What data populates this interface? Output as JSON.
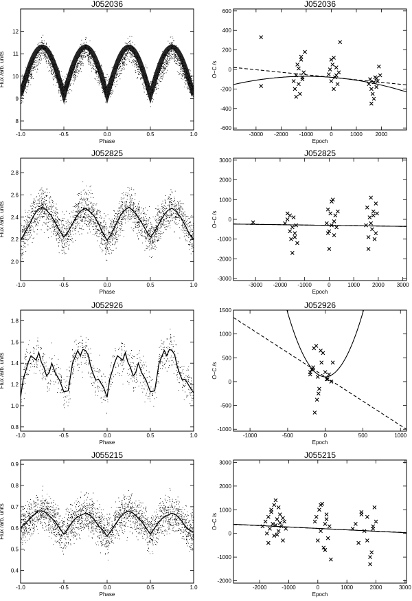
{
  "chart_data": [
    {
      "type": "scatter",
      "title": "J052036",
      "xlabel": "Phase",
      "ylabel": "Flux /arb. units",
      "xlim": [
        -1.0,
        1.0
      ],
      "ylim": [
        7.6,
        13.0
      ],
      "xticks": [
        -1.0,
        -0.5,
        0.0,
        0.5,
        1.0
      ],
      "xtick_labels": [
        "-1.0",
        "-0.5",
        "0.0",
        "0.5",
        "1.0"
      ],
      "yticks": [
        8,
        9,
        10,
        11,
        12
      ],
      "ytick_labels": [
        "8",
        "9",
        "10",
        "11",
        "12"
      ],
      "curve": {
        "x": [
          -1.0,
          -0.75,
          -0.5,
          -0.25,
          0.0,
          0.25,
          0.5,
          0.75,
          1.0
        ],
        "y": [
          9.3,
          11.3,
          9.3,
          11.3,
          9.3,
          11.3,
          9.3,
          11.3,
          9.3
        ]
      },
      "scatter_note": "dense scatter of individual flux measurements around the model curve"
    },
    {
      "type": "scatter",
      "title": "J052036",
      "xlabel": "Epoch",
      "ylabel": "O−C /s",
      "xlim": [
        -3900,
        3000
      ],
      "ylim": [
        -620,
        620
      ],
      "xticks": [
        -3000,
        -2000,
        -1000,
        0,
        1000,
        2000
      ],
      "xtick_labels": [
        "-3000",
        "-2000",
        "-1000",
        "0",
        "1000",
        "2000"
      ],
      "yticks": [
        -600,
        -400,
        -200,
        0,
        200,
        400,
        600
      ],
      "ytick_labels": [
        "-600",
        "-400",
        "-200",
        "0",
        "200",
        "400",
        "600"
      ],
      "series": [
        {
          "style": "cross",
          "x": [
            -2800,
            -2800,
            -1500,
            -1450,
            -1400,
            -1350,
            -1300,
            -1250,
            -1200,
            -1150,
            -1100,
            -1050,
            -1400,
            -1300,
            -1200,
            -1150,
            -100,
            -50,
            0,
            50,
            100,
            150,
            200,
            250,
            300,
            350,
            0,
            100,
            200,
            1500,
            1550,
            1600,
            1650,
            1700,
            1750,
            1800,
            1850,
            1900,
            1950,
            1600,
            1700,
            1800
          ],
          "y": [
            330,
            -170,
            -120,
            -200,
            -60,
            50,
            -150,
            -250,
            100,
            -80,
            -30,
            180,
            -280,
            10,
            130,
            -100,
            -50,
            0,
            -120,
            50,
            120,
            -80,
            20,
            -150,
            -30,
            280,
            100,
            -200,
            -60,
            -150,
            -100,
            -200,
            -250,
            -130,
            -80,
            -180,
            -120,
            30,
            -60,
            -350,
            -300,
            -90
          ]
        }
      ],
      "lines": [
        {
          "style": "solid",
          "quadratic": [
            -80.4,
            -0.02,
            -1e-05
          ]
        },
        {
          "style": "dashed",
          "linear": [
            -80.4,
            -0.0259
          ]
        }
      ]
    },
    {
      "type": "scatter",
      "title": "J052825",
      "xlabel": "Phase",
      "ylabel": "Flux /arb. units",
      "xlim": [
        -1.0,
        1.0
      ],
      "ylim": [
        1.83,
        2.93
      ],
      "xticks": [
        -1.0,
        -0.5,
        0.0,
        0.5,
        1.0
      ],
      "xtick_labels": [
        "-1.0",
        "-0.5",
        "0.0",
        "0.5",
        "1.0"
      ],
      "yticks": [
        2.0,
        2.2,
        2.4,
        2.6,
        2.8
      ],
      "ytick_labels": [
        "2.0",
        "2.2",
        "2.4",
        "2.6",
        "2.8"
      ],
      "curve": {
        "x": [
          -1.0,
          -0.95,
          -0.9,
          -0.85,
          -0.8,
          -0.75,
          -0.7,
          -0.65,
          -0.6,
          -0.55,
          -0.5,
          -0.45,
          -0.4,
          -0.35,
          -0.3,
          -0.25,
          -0.2,
          -0.15,
          -0.1,
          -0.05,
          0.0,
          0.05,
          0.1,
          0.15,
          0.2,
          0.25,
          0.3,
          0.35,
          0.4,
          0.45,
          0.5,
          0.55,
          0.6,
          0.65,
          0.7,
          0.75,
          0.8,
          0.85,
          0.9,
          0.95,
          1.0
        ],
        "y": [
          2.19,
          2.26,
          2.33,
          2.41,
          2.47,
          2.49,
          2.46,
          2.42,
          2.35,
          2.28,
          2.22,
          2.27,
          2.34,
          2.41,
          2.46,
          2.48,
          2.45,
          2.41,
          2.34,
          2.26,
          2.19,
          2.25,
          2.33,
          2.41,
          2.46,
          2.49,
          2.46,
          2.41,
          2.35,
          2.28,
          2.22,
          2.27,
          2.34,
          2.41,
          2.46,
          2.48,
          2.45,
          2.4,
          2.33,
          2.25,
          2.2
        ]
      },
      "scatter_note": "dense scatter of individual flux measurements around the model curve"
    },
    {
      "type": "scatter",
      "title": "J052825",
      "xlabel": "Epoch",
      "ylabel": "O−C /s",
      "xlim": [
        -3900,
        3150
      ],
      "ylim": [
        -3100,
        3100
      ],
      "xticks": [
        -3000,
        -2000,
        -1000,
        0,
        1000,
        2000,
        3000
      ],
      "xtick_labels": [
        "-3000",
        "-2000",
        "-1000",
        "0",
        "1000",
        "2000",
        "3000"
      ],
      "yticks": [
        -3000,
        -2000,
        -1000,
        0,
        1000,
        2000,
        3000
      ],
      "ytick_labels": [
        "-3000",
        "-2000",
        "-1000",
        "0",
        "1000",
        "2000",
        "3000"
      ],
      "series": [
        {
          "style": "cross",
          "x": [
            -3100,
            -1800,
            -1700,
            -1600,
            -1550,
            -1500,
            -1450,
            -1400,
            -1350,
            -1300,
            -1600,
            -1500,
            -1400,
            -1700,
            -100,
            -50,
            0,
            50,
            100,
            150,
            200,
            250,
            300,
            350,
            0,
            100,
            200,
            -50,
            1500,
            1550,
            1600,
            1650,
            1700,
            1750,
            1800,
            1850,
            1900,
            1950,
            1600,
            1700,
            1800,
            1900
          ],
          "y": [
            -150,
            -200,
            300,
            -600,
            -1000,
            -400,
            100,
            -700,
            -300,
            -1200,
            200,
            -1700,
            -900,
            0,
            -200,
            500,
            -600,
            300,
            -300,
            1000,
            -800,
            200,
            -400,
            400,
            -1500,
            900,
            -100,
            -700,
            -300,
            600,
            -900,
            100,
            1100,
            -500,
            200,
            -1000,
            800,
            300,
            -1500,
            -200,
            400,
            -700
          ]
        }
      ],
      "lines": [
        {
          "style": "solid",
          "linear": [
            -304,
            -0.0171
          ]
        },
        {
          "style": "dashed",
          "linear": [
            -304,
            -0.0171
          ]
        }
      ]
    },
    {
      "type": "scatter",
      "title": "J052926",
      "xlabel": "Phase",
      "ylabel": "Flux /arb. units",
      "xlim": [
        -1.0,
        1.0
      ],
      "ylim": [
        0.76,
        1.9
      ],
      "xticks": [
        -1.0,
        -0.5,
        0.0,
        0.5,
        1.0
      ],
      "xtick_labels": [
        "-1.0",
        "-0.5",
        "0.0",
        "0.5",
        "1.0"
      ],
      "yticks": [
        0.8,
        1.0,
        1.2,
        1.4,
        1.6,
        1.8
      ],
      "ytick_labels": [
        "0.8",
        "1.0",
        "1.2",
        "1.4",
        "1.6",
        "1.8"
      ],
      "curve": {
        "x": [
          -1.0,
          -0.97,
          -0.94,
          -0.91,
          -0.88,
          -0.85,
          -0.82,
          -0.79,
          -0.76,
          -0.73,
          -0.7,
          -0.67,
          -0.64,
          -0.6,
          -0.55,
          -0.5,
          -0.45,
          -0.4,
          -0.37,
          -0.34,
          -0.31,
          -0.28,
          -0.25,
          -0.22,
          -0.19,
          -0.16,
          -0.13,
          -0.1,
          -0.07,
          -0.04,
          0.0,
          0.03,
          0.06,
          0.09,
          0.12,
          0.15,
          0.18,
          0.21,
          0.24,
          0.27,
          0.3,
          0.33,
          0.36,
          0.4,
          0.45,
          0.5,
          0.55,
          0.6,
          0.63,
          0.66,
          0.69,
          0.72,
          0.75,
          0.78,
          0.81,
          0.84,
          0.87,
          0.9,
          0.93,
          0.96,
          1.0
        ],
        "y": [
          1.08,
          1.25,
          1.33,
          1.41,
          1.47,
          1.45,
          1.43,
          1.5,
          1.41,
          1.36,
          1.28,
          1.31,
          1.4,
          1.31,
          1.24,
          1.13,
          1.14,
          1.4,
          1.46,
          1.52,
          1.47,
          1.53,
          1.52,
          1.48,
          1.37,
          1.3,
          1.24,
          1.25,
          1.21,
          1.17,
          1.08,
          1.25,
          1.33,
          1.41,
          1.47,
          1.45,
          1.43,
          1.5,
          1.41,
          1.36,
          1.28,
          1.31,
          1.4,
          1.31,
          1.24,
          1.13,
          1.14,
          1.4,
          1.46,
          1.52,
          1.47,
          1.53,
          1.52,
          1.48,
          1.37,
          1.3,
          1.24,
          1.25,
          1.21,
          1.17,
          1.12
        ]
      },
      "scatter_note": "sparse scatter of individual flux measurements around the model curve"
    },
    {
      "type": "scatter",
      "title": "J052926",
      "xlabel": "Epoch",
      "ylabel": "O−C /s",
      "xlim": [
        -1220,
        1080
      ],
      "ylim": [
        -1040,
        1500
      ],
      "xticks": [
        -1000,
        -500,
        0,
        500,
        1000
      ],
      "xtick_labels": [
        "-1000",
        "-500",
        "0",
        "500",
        "1000"
      ],
      "yticks": [
        -1000,
        -500,
        0,
        500,
        1000,
        1500
      ],
      "ytick_labels": [
        "-1000",
        "-500",
        "0",
        "500",
        "1000",
        "1500"
      ],
      "series": [
        {
          "style": "cross",
          "x": [
            -200,
            -180,
            -150,
            -120,
            -100,
            -80,
            -60,
            -50,
            -30,
            0,
            20,
            50,
            80,
            100,
            -140,
            -110,
            -90,
            30,
            -200,
            -160
          ],
          "y": [
            200,
            250,
            700,
            750,
            100,
            -150,
            650,
            400,
            600,
            200,
            50,
            150,
            0,
            400,
            -650,
            -380,
            -250,
            50,
            150,
            300
          ]
        }
      ],
      "lines": [
        {
          "style": "solid",
          "quadratic": [
            100,
            0,
            0.0054
          ]
        },
        {
          "style": "dashed",
          "linear": [
            100,
            -1.02
          ]
        }
      ]
    },
    {
      "type": "scatter",
      "title": "J055215",
      "xlabel": "Phase",
      "ylabel": "Flux /arb. units",
      "xlim": [
        -1.0,
        1.0
      ],
      "ylim": [
        0.34,
        0.92
      ],
      "xticks": [
        -1.0,
        -0.5,
        0.0,
        0.5,
        1.0
      ],
      "xtick_labels": [
        "-1.0",
        "-0.5",
        "0.0",
        "0.5",
        "1.0"
      ],
      "yticks": [
        0.4,
        0.5,
        0.6,
        0.7,
        0.8,
        0.9
      ],
      "ytick_labels": [
        "0.4",
        "0.5",
        "0.6",
        "0.7",
        "0.8",
        "0.9"
      ],
      "curve": {
        "x": [
          -1.0,
          -0.95,
          -0.9,
          -0.85,
          -0.8,
          -0.75,
          -0.7,
          -0.65,
          -0.6,
          -0.55,
          -0.5,
          -0.45,
          -0.4,
          -0.35,
          -0.3,
          -0.25,
          -0.2,
          -0.15,
          -0.1,
          -0.05,
          0.0,
          0.05,
          0.1,
          0.15,
          0.2,
          0.25,
          0.3,
          0.35,
          0.4,
          0.45,
          0.5,
          0.55,
          0.6,
          0.65,
          0.7,
          0.75,
          0.8,
          0.85,
          0.9,
          0.95,
          1.0
        ],
        "y": [
          0.6,
          0.62,
          0.64,
          0.66,
          0.68,
          0.68,
          0.67,
          0.65,
          0.63,
          0.6,
          0.57,
          0.6,
          0.63,
          0.65,
          0.66,
          0.67,
          0.66,
          0.64,
          0.61,
          0.59,
          0.56,
          0.59,
          0.62,
          0.65,
          0.67,
          0.68,
          0.67,
          0.65,
          0.63,
          0.6,
          0.57,
          0.6,
          0.63,
          0.65,
          0.66,
          0.67,
          0.66,
          0.64,
          0.61,
          0.59,
          0.58
        ]
      },
      "scatter_note": "dense scatter of individual flux measurements around the model curve"
    },
    {
      "type": "scatter",
      "title": "J055215",
      "xlabel": "Epoch",
      "ylabel": "O−C /s",
      "xlim": [
        -2900,
        3050
      ],
      "ylim": [
        -2100,
        3100
      ],
      "xticks": [
        -2000,
        -1000,
        0,
        1000,
        2000,
        3000
      ],
      "xtick_labels": [
        "-2000",
        "-1000",
        "0",
        "1000",
        "2000",
        "3000"
      ],
      "yticks": [
        -2000,
        -1000,
        0,
        1000,
        2000,
        3000
      ],
      "ytick_labels": [
        "-2000",
        "-1000",
        "0",
        "1000",
        "2000",
        "3000"
      ],
      "series": [
        {
          "style": "cross",
          "x": [
            -1900,
            -1800,
            -1750,
            -1700,
            -1650,
            -1600,
            -1550,
            -1500,
            -1450,
            -1400,
            -1350,
            -1300,
            -1250,
            -1200,
            -1150,
            -1100,
            -1600,
            -1500,
            -1400,
            -1300,
            -1200,
            -1700,
            -1450,
            -1350,
            -100,
            0,
            50,
            100,
            150,
            200,
            250,
            300,
            350,
            400,
            450,
            -50,
            100,
            250,
            300,
            1200,
            1300,
            1400,
            1500,
            1600,
            1700,
            1800,
            1850,
            1900,
            1950,
            2000,
            1500,
            1700,
            1900,
            1800
          ],
          "y": [
            300,
            500,
            0,
            700,
            200,
            1000,
            400,
            -100,
            1400,
            600,
            100,
            800,
            300,
            -300,
            500,
            200,
            900,
            1200,
            -50,
            450,
            650,
            -400,
            350,
            1100,
            500,
            -300,
            1000,
            100,
            1250,
            -600,
            400,
            800,
            -200,
            300,
            -1100,
            700,
            1200,
            -700,
            600,
            200,
            400,
            -400,
            900,
            100,
            700,
            -1300,
            -800,
            300,
            1100,
            500,
            800,
            -300,
            200,
            -1000
          ]
        }
      ],
      "lines": [
        {
          "style": "solid",
          "linear": [
            211,
            -0.061
          ]
        },
        {
          "style": "dashed",
          "linear": [
            211,
            -0.058
          ]
        }
      ]
    }
  ]
}
